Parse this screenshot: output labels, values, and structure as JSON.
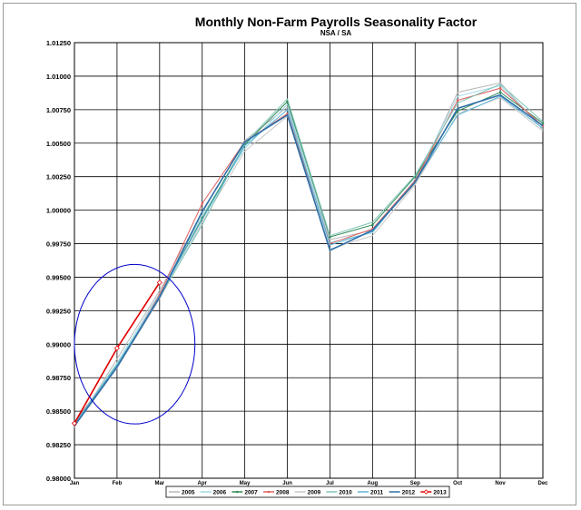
{
  "chart_data": {
    "type": "line",
    "title": "Monthly Non-Farm Payrolls Seasonality Factor",
    "subtitle": "NSA / SA",
    "xlabel": "",
    "ylabel": "",
    "categories": [
      "Jan",
      "Feb",
      "Mar",
      "Apr",
      "May",
      "Jun",
      "Jul",
      "Aug",
      "Sep",
      "Oct",
      "Nov",
      "Dec"
    ],
    "ylim": [
      0.98,
      1.0125
    ],
    "yticks": [
      0.98,
      0.9825,
      0.985,
      0.9875,
      0.99,
      0.9925,
      0.995,
      0.9975,
      1.0,
      1.0025,
      1.005,
      1.0075,
      1.01,
      1.0125
    ],
    "ytick_labels": [
      "0.98000",
      "0.98250",
      "0.98500",
      "0.98750",
      "0.99000",
      "0.99250",
      "0.99500",
      "0.99750",
      "1.00000",
      "1.00250",
      "1.00500",
      "1.00750",
      "1.01000",
      "1.01250"
    ],
    "grid": true,
    "legend": "bottom",
    "series": [
      {
        "name": "2005",
        "color": "#b8b8b8",
        "marker": "none",
        "values": [
          0.9838,
          0.9889,
          0.994,
          0.9998,
          1.0052,
          1.0077,
          0.9978,
          0.9985,
          1.002,
          1.0088,
          1.0095,
          1.006
        ]
      },
      {
        "name": "2006",
        "color": "#9fd8e6",
        "marker": "none",
        "values": [
          0.984,
          0.9886,
          0.9938,
          0.9996,
          1.0046,
          1.0079,
          0.9976,
          0.9983,
          1.0023,
          1.0085,
          1.0093,
          1.0062
        ]
      },
      {
        "name": "2007",
        "color": "#2e8b57",
        "marker": "dot",
        "values": [
          0.9841,
          0.9884,
          0.9936,
          0.9994,
          1.0049,
          1.0081,
          0.998,
          0.9989,
          1.0025,
          1.0074,
          1.0088,
          1.0065
        ]
      },
      {
        "name": "2008",
        "color": "#e06060",
        "marker": "dot",
        "values": [
          0.9842,
          0.9883,
          0.9937,
          1.0005,
          1.0051,
          1.0072,
          0.9975,
          0.9986,
          1.0022,
          1.0082,
          1.0091,
          1.0063
        ]
      },
      {
        "name": "2009",
        "color": "#c8c8c8",
        "marker": "none",
        "values": [
          0.9839,
          0.9882,
          0.9934,
          0.9991,
          1.0044,
          1.007,
          0.9971,
          0.9981,
          1.0019,
          1.0072,
          1.0084,
          1.0059
        ]
      },
      {
        "name": "2010",
        "color": "#7fc4b8",
        "marker": "none",
        "values": [
          0.984,
          0.9885,
          0.9935,
          0.9989,
          1.005,
          1.0083,
          0.9981,
          0.9991,
          1.0026,
          1.008,
          1.0094,
          1.0066
        ]
      },
      {
        "name": "2011",
        "color": "#5ab4d6",
        "marker": "none",
        "values": [
          0.9841,
          0.9884,
          0.9936,
          0.9993,
          1.0048,
          1.0075,
          0.9974,
          0.9984,
          1.0021,
          1.0071,
          1.0085,
          1.0061
        ]
      },
      {
        "name": "2012",
        "color": "#2e6fa8",
        "marker": "none",
        "values": [
          0.9839,
          0.9883,
          0.9935,
          0.9999,
          1.0051,
          1.0071,
          0.997,
          0.9985,
          1.0021,
          1.0076,
          1.0086,
          1.0063
        ]
      },
      {
        "name": "2013",
        "color": "#e00000",
        "marker": "diamond",
        "values": [
          0.9841,
          0.9897,
          0.9946,
          null,
          null,
          null,
          null,
          null,
          null,
          null,
          null,
          null
        ]
      }
    ],
    "annotations": [
      {
        "type": "ellipse",
        "color": "#0000cc",
        "note": "circled Jan-Mar region"
      }
    ]
  }
}
